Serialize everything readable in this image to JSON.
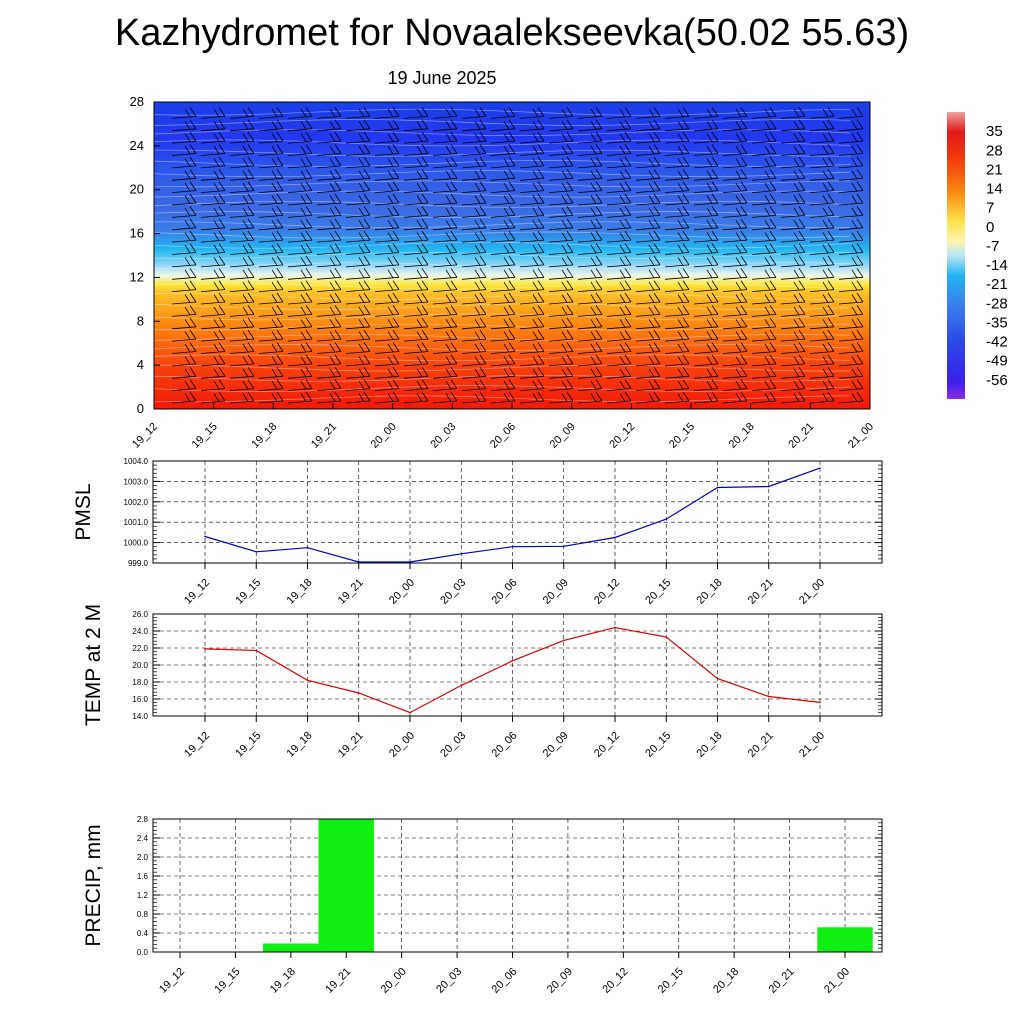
{
  "header": {
    "title": "Kazhydromet for Novaalekseevka(50.02 55.63)",
    "date": "19 June 2025"
  },
  "time_labels": [
    "19_12",
    "19_15",
    "19_18",
    "19_21",
    "20_00",
    "20_03",
    "20_06",
    "20_09",
    "20_12",
    "20_15",
    "20_18",
    "20_21",
    "21_00"
  ],
  "chart_data": [
    {
      "type": "heatmap",
      "name": "cross-section",
      "x": [
        "19_12",
        "19_15",
        "19_18",
        "19_21",
        "20_00",
        "20_03",
        "20_06",
        "20_09",
        "20_12",
        "20_15",
        "20_18",
        "20_21",
        "21_00"
      ],
      "y_ticks": [
        0,
        4,
        8,
        12,
        16,
        20,
        24,
        28
      ],
      "ylim": [
        0,
        28
      ],
      "colorbar": {
        "ticks": [
          35,
          28,
          21,
          14,
          7,
          0,
          -7,
          -14,
          -21,
          -28,
          -35,
          -42,
          -49,
          -56
        ],
        "range": [
          -63,
          42
        ]
      },
      "wind_barbs": true,
      "colors": {
        "low": "#f21808",
        "mid": "#fce83a",
        "cold": "#22b8f0",
        "top": "#1e40e8"
      }
    },
    {
      "type": "line",
      "ylabel": "PMSL",
      "x": [
        "19_12",
        "19_15",
        "19_18",
        "19_21",
        "20_00",
        "20_03",
        "20_06",
        "20_09",
        "20_12",
        "20_15",
        "20_18",
        "20_21",
        "21_00"
      ],
      "values": [
        1000.3,
        999.55,
        999.75,
        999.05,
        999.05,
        999.45,
        999.8,
        999.82,
        1000.25,
        1001.15,
        1002.7,
        1002.75,
        1003.65
      ],
      "ylim": [
        999.0,
        1004.0
      ],
      "y_ticks": [
        "999.0",
        "1000.0",
        "1001.0",
        "1002.0",
        "1003.0",
        "1004.0"
      ],
      "color": "#0000cc",
      "grid": true
    },
    {
      "type": "line",
      "ylabel": "TEMP at 2 M",
      "x": [
        "19_12",
        "19_15",
        "19_18",
        "19_21",
        "20_00",
        "20_03",
        "20_06",
        "20_09",
        "20_12",
        "20_15",
        "20_18",
        "20_21",
        "21_00"
      ],
      "values": [
        21.9,
        21.7,
        18.2,
        16.7,
        14.4,
        17.6,
        20.5,
        22.9,
        24.4,
        23.3,
        18.4,
        16.3,
        15.6
      ],
      "ylim": [
        14.0,
        26.0
      ],
      "y_ticks": [
        "14.0",
        "16.0",
        "18.0",
        "20.0",
        "22.0",
        "24.0",
        "26.0"
      ],
      "color": "#dd0000",
      "grid": true
    },
    {
      "type": "bar",
      "ylabel": "PRECIP, mm",
      "x": [
        "19_12",
        "19_15",
        "19_18",
        "19_21",
        "20_00",
        "20_03",
        "20_06",
        "20_09",
        "20_12",
        "20_15",
        "20_18",
        "20_21",
        "21_00"
      ],
      "values": [
        0,
        0,
        0.18,
        2.8,
        0,
        0,
        0,
        0,
        0,
        0,
        0,
        0,
        0.52
      ],
      "ylim": [
        0,
        2.8
      ],
      "y_ticks": [
        "0.0",
        "0.4",
        "0.8",
        "1.2",
        "1.6",
        "2.0",
        "2.4",
        "2.8"
      ],
      "color": "#11ee11",
      "grid": true
    }
  ]
}
